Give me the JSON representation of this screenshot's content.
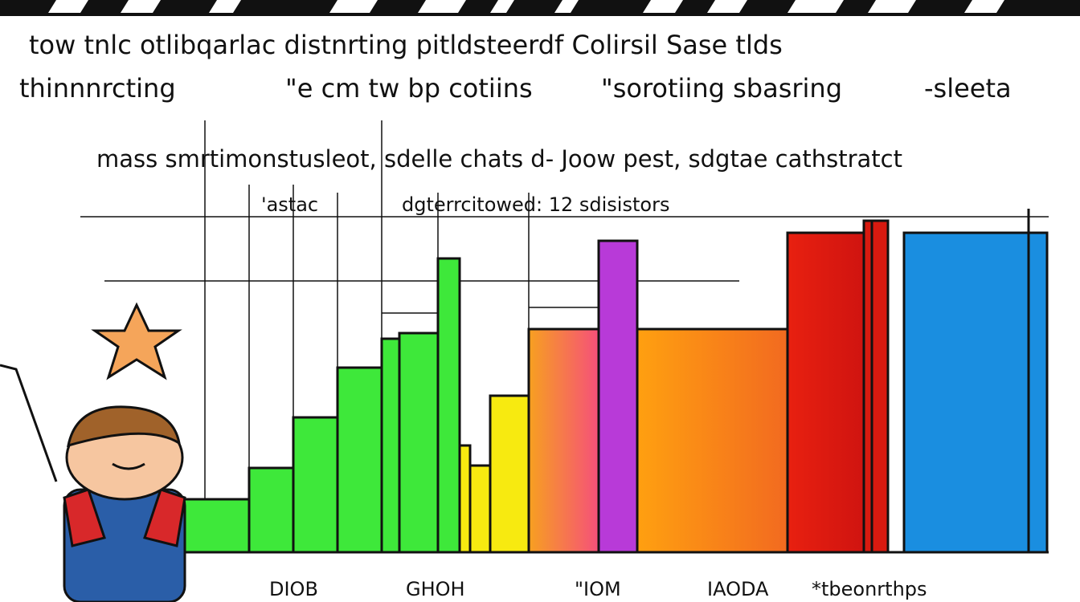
{
  "header": {
    "line1": "tow tnlc otlibqarlac distnrting pitldsteerdf Colirsil Sase tlds",
    "line2": [
      "thinnnrcting",
      "\"e cm tw bp cotiins",
      "\"sorotiing sbasring",
      "-sleeta"
    ]
  },
  "caption": {
    "line1": "mass smrtimonstusleot, sdelle chats d- Joow pest, sdgtae cathstratct",
    "line2": [
      "'astac",
      "dgterrcitowed: 12 sdisistors"
    ]
  },
  "labels": [
    "DIOB",
    "GHOH",
    "\"IOM",
    "IAODA",
    "*tbeonrthps"
  ]
}
